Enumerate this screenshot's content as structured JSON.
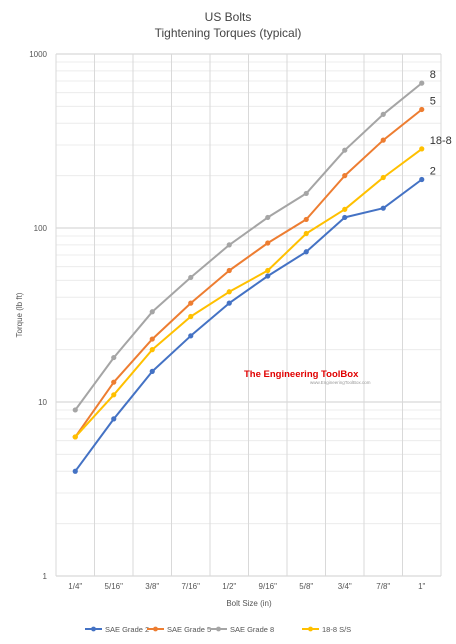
{
  "chart_data": {
    "type": "line",
    "title": "US Bolts",
    "subtitle": "Tightening Torques (typical)",
    "xlabel": "Bolt Size (in)",
    "ylabel": "Torque (lb ft)",
    "yscale": "log",
    "ylim": [
      1,
      1000
    ],
    "yticks": [
      "1",
      "10",
      "100",
      "1000"
    ],
    "grid": "vertical and horizontal log gridlines",
    "legend_position": "bottom",
    "categories": [
      "1/4\"",
      "5/16\"",
      "3/8\"",
      "7/16\"",
      "1/2\"",
      "9/16\"",
      "5/8\"",
      "3/4\"",
      "7/8\"",
      "1\""
    ],
    "series": [
      {
        "name": "SAE Grade 2",
        "end_label": "2",
        "color": "#4472c4",
        "values": [
          4,
          8,
          15,
          24,
          37,
          53,
          73,
          115,
          130,
          190
        ]
      },
      {
        "name": "SAE Grade 5",
        "end_label": "5",
        "color": "#ed7d31",
        "values": [
          6.3,
          13,
          23,
          37,
          57,
          82,
          112,
          200,
          320,
          480
        ]
      },
      {
        "name": "SAE Grade 8",
        "end_label": "8",
        "color": "#a5a5a5",
        "values": [
          9,
          18,
          33,
          52,
          80,
          115,
          158,
          280,
          450,
          680
        ]
      },
      {
        "name": "18-8 S/S",
        "end_label": "18-8",
        "color": "#ffc000",
        "values": [
          6.3,
          11,
          20,
          31,
          43,
          57,
          93,
          128,
          195,
          285
        ]
      }
    ],
    "watermark": {
      "name": "The Engineering ToolBox",
      "url": "www.EngineeringToolBox.com"
    }
  }
}
